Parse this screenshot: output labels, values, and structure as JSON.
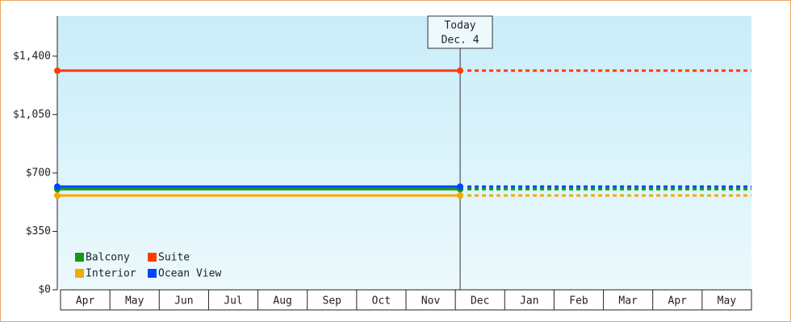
{
  "chart_data": {
    "type": "line",
    "annotation": [
      "Today",
      "Dec. 4"
    ],
    "categories": [
      "Apr",
      "May",
      "Jun",
      "Jul",
      "Aug",
      "Sep",
      "Oct",
      "Nov",
      "Dec",
      "Jan",
      "Feb",
      "Mar",
      "Apr",
      "May"
    ],
    "series": [
      {
        "name": "Balcony",
        "color": "#119911",
        "value": 603
      },
      {
        "name": "Suite",
        "color": "#ff3c00",
        "value": 1313
      },
      {
        "name": "Interior",
        "color": "#f5a800",
        "value": 565
      },
      {
        "name": "Ocean View",
        "color": "#0044ff",
        "value": 618
      }
    ],
    "ylim": [
      0,
      1640
    ],
    "yticks": [
      {
        "value": 0,
        "label": "$0"
      },
      {
        "value": 350,
        "label": "$350"
      },
      {
        "value": 700,
        "label": "$700"
      },
      {
        "value": 1050,
        "label": "$1,050"
      },
      {
        "value": 1400,
        "label": "$1,400"
      }
    ],
    "legend": "bottom-left"
  }
}
